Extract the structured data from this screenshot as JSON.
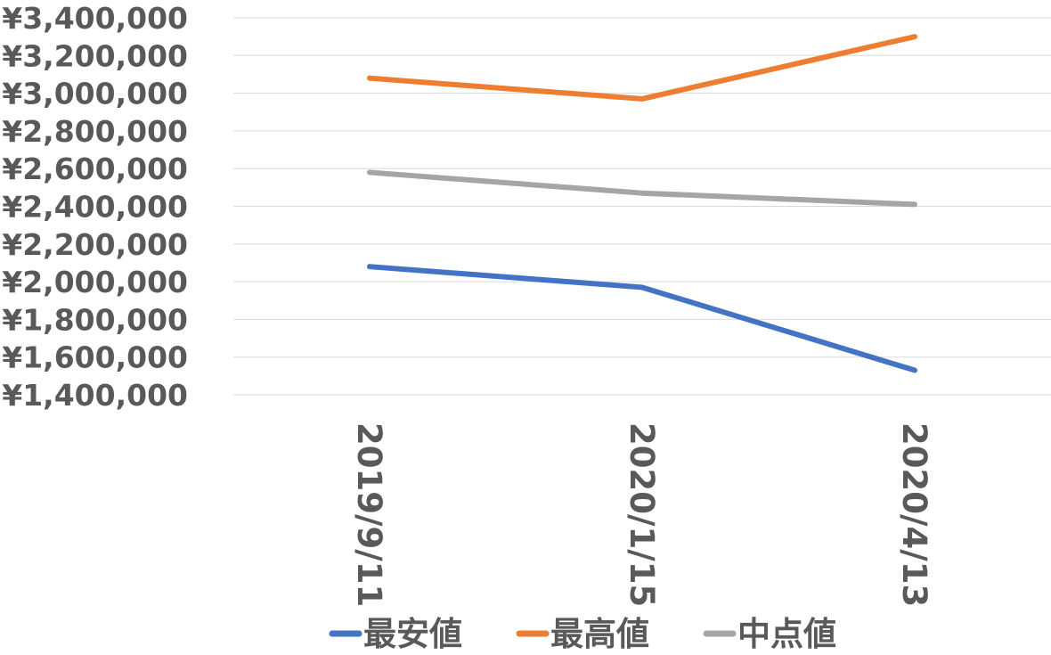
{
  "chart_data": {
    "type": "line",
    "title": "",
    "xlabel": "",
    "ylabel": "",
    "categories": [
      "2019/9/11",
      "2020/1/15",
      "2020/4/13"
    ],
    "ylim": [
      1400000,
      3400000
    ],
    "y_ticks": [
      1400000,
      1600000,
      1800000,
      2000000,
      2200000,
      2400000,
      2600000,
      2800000,
      3000000,
      3200000,
      3400000
    ],
    "y_tick_labels": [
      "¥1,400,000",
      "¥1,600,000",
      "¥1,800,000",
      "¥2,000,000",
      "¥2,200,000",
      "¥2,400,000",
      "¥2,600,000",
      "¥2,800,000",
      "¥3,000,000",
      "¥3,200,000",
      "¥3,400,000"
    ],
    "grid": true,
    "legend_position": "bottom",
    "series": [
      {
        "name": "最安値",
        "values": [
          2080000,
          1970000,
          1530000
        ],
        "color": "#4472c4"
      },
      {
        "name": "最高値",
        "values": [
          3080000,
          2970000,
          3300000
        ],
        "color": "#ed7d31"
      },
      {
        "name": "中点値",
        "values": [
          2580000,
          2470000,
          2410000
        ],
        "color": "#a5a5a5"
      }
    ]
  }
}
